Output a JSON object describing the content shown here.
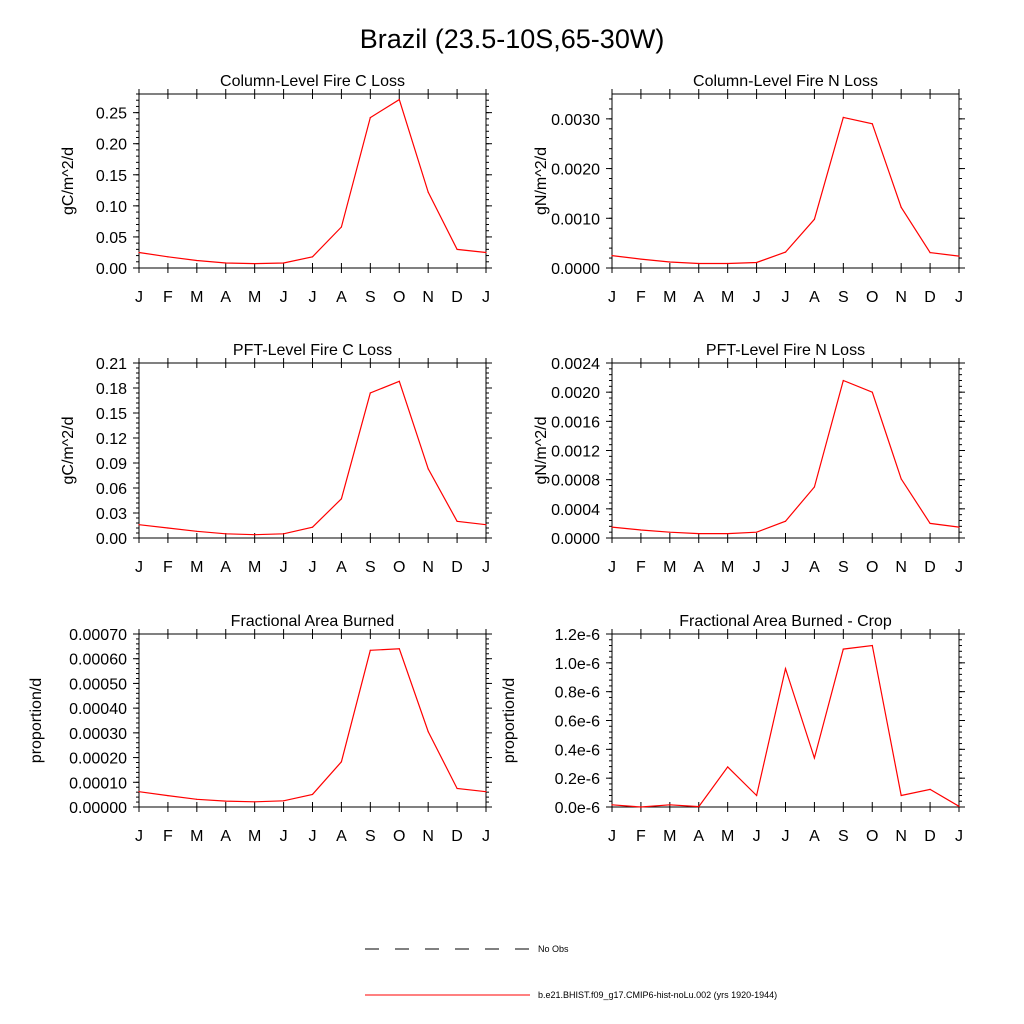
{
  "figure": {
    "title": "Brazil (23.5-10S,65-30W)"
  },
  "legend": {
    "placement": "bottom-center",
    "items": [
      {
        "label": "No Obs",
        "color": "#000000",
        "style": "dashed"
      },
      {
        "label": "b.e21.BHIST.f09_g17.CMIP6-hist-noLu.002 (yrs 1920-1944)",
        "color": "#ff0000",
        "style": "solid"
      }
    ]
  },
  "chart_data": [
    {
      "type": "line",
      "title": "Column-Level Fire C Loss",
      "ylabel": "gC/m^2/d",
      "xlabel": "",
      "categories": [
        "J",
        "F",
        "M",
        "A",
        "M",
        "J",
        "J",
        "A",
        "S",
        "O",
        "N",
        "D",
        "J"
      ],
      "ylim": [
        0,
        0.28
      ],
      "yticks": [
        0.0,
        0.05,
        0.1,
        0.15,
        0.2,
        0.25
      ],
      "ytick_labels": [
        "0.00",
        "0.05",
        "0.10",
        "0.15",
        "0.20",
        "0.25"
      ],
      "series": [
        {
          "color": "#ff0000",
          "values": [
            0.025,
            0.018,
            0.012,
            0.008,
            0.007,
            0.008,
            0.018,
            0.066,
            0.242,
            0.271,
            0.122,
            0.03,
            0.025
          ]
        }
      ]
    },
    {
      "type": "line",
      "title": "Column-Level Fire N Loss",
      "ylabel": "gN/m^2/d",
      "xlabel": "",
      "categories": [
        "J",
        "F",
        "M",
        "A",
        "M",
        "J",
        "J",
        "A",
        "S",
        "O",
        "N",
        "D",
        "J"
      ],
      "ylim": [
        0,
        0.0035
      ],
      "yticks": [
        0.0,
        0.001,
        0.002,
        0.003
      ],
      "ytick_labels": [
        "0.0000",
        "0.0010",
        "0.0020",
        "0.0030"
      ],
      "series": [
        {
          "color": "#ff0000",
          "values": [
            0.00025,
            0.00018,
            0.00012,
            9e-05,
            9e-05,
            0.00011,
            0.00032,
            0.00098,
            0.00303,
            0.0029,
            0.00122,
            0.00031,
            0.00024
          ]
        }
      ]
    },
    {
      "type": "line",
      "title": "PFT-Level Fire C Loss",
      "ylabel": "gC/m^2/d",
      "xlabel": "",
      "categories": [
        "J",
        "F",
        "M",
        "A",
        "M",
        "J",
        "J",
        "A",
        "S",
        "O",
        "N",
        "D",
        "J"
      ],
      "ylim": [
        0,
        0.21
      ],
      "yticks": [
        0.0,
        0.03,
        0.06,
        0.09,
        0.12,
        0.15,
        0.18,
        0.21
      ],
      "ytick_labels": [
        "0.00",
        "0.03",
        "0.06",
        "0.09",
        "0.12",
        "0.15",
        "0.18",
        "0.21"
      ],
      "series": [
        {
          "color": "#ff0000",
          "values": [
            0.016,
            0.012,
            0.008,
            0.005,
            0.004,
            0.005,
            0.013,
            0.047,
            0.174,
            0.188,
            0.083,
            0.02,
            0.016
          ]
        }
      ]
    },
    {
      "type": "line",
      "title": "PFT-Level Fire N Loss",
      "ylabel": "gN/m^2/d",
      "xlabel": "",
      "categories": [
        "J",
        "F",
        "M",
        "A",
        "M",
        "J",
        "J",
        "A",
        "S",
        "O",
        "N",
        "D",
        "J"
      ],
      "ylim": [
        0,
        0.0024
      ],
      "yticks": [
        0.0,
        0.0004,
        0.0008,
        0.0012,
        0.0016,
        0.002,
        0.0024
      ],
      "ytick_labels": [
        "0.0000",
        "0.0004",
        "0.0008",
        "0.0012",
        "0.0016",
        "0.0020",
        "0.0024"
      ],
      "series": [
        {
          "color": "#ff0000",
          "values": [
            0.00015,
            0.00011,
            8e-05,
            6e-05,
            6e-05,
            8e-05,
            0.00023,
            0.0007,
            0.00216,
            0.002,
            0.00081,
            0.0002,
            0.00015
          ]
        }
      ]
    },
    {
      "type": "line",
      "title": "Fractional Area Burned",
      "ylabel": "proportion/d",
      "xlabel": "",
      "categories": [
        "J",
        "F",
        "M",
        "A",
        "M",
        "J",
        "J",
        "A",
        "S",
        "O",
        "N",
        "D",
        "J"
      ],
      "ylim": [
        0,
        0.0007
      ],
      "yticks": [
        0.0,
        0.0001,
        0.0002,
        0.0003,
        0.0004,
        0.0005,
        0.0006,
        0.0007
      ],
      "ytick_labels": [
        "0.00000",
        "0.00010",
        "0.00020",
        "0.00030",
        "0.00040",
        "0.00050",
        "0.00060",
        "0.00070"
      ],
      "series": [
        {
          "color": "#ff0000",
          "values": [
            6.2e-05,
            4.6e-05,
            3.1e-05,
            2.4e-05,
            2.1e-05,
            2.5e-05,
            5.1e-05,
            0.000183,
            0.000634,
            0.00064,
            0.000305,
            7.5e-05,
            6.2e-05
          ]
        }
      ]
    },
    {
      "type": "line",
      "title": "Fractional Area Burned - Crop",
      "ylabel": "proportion/d",
      "xlabel": "",
      "categories": [
        "J",
        "F",
        "M",
        "A",
        "M",
        "J",
        "J",
        "A",
        "S",
        "O",
        "N",
        "D",
        "J"
      ],
      "ylim": [
        0,
        1.2e-06
      ],
      "yticks": [
        0.0,
        2e-07,
        4e-07,
        6e-07,
        8e-07,
        1e-06,
        1.2e-06
      ],
      "ytick_labels": [
        "0.0e-6",
        "0.2e-6",
        "0.4e-6",
        "0.6e-6",
        "0.8e-6",
        "1.0e-6",
        "1.2e-6"
      ],
      "series": [
        {
          "color": "#ff0000",
          "values": [
            1.5e-08,
            0.0,
            1.5e-08,
            3e-09,
            2.78e-07,
            8e-08,
            9.6e-07,
            3.4e-07,
            1.095e-06,
            1.12e-06,
            8e-08,
            1.22e-07,
            5e-09
          ]
        }
      ]
    }
  ]
}
